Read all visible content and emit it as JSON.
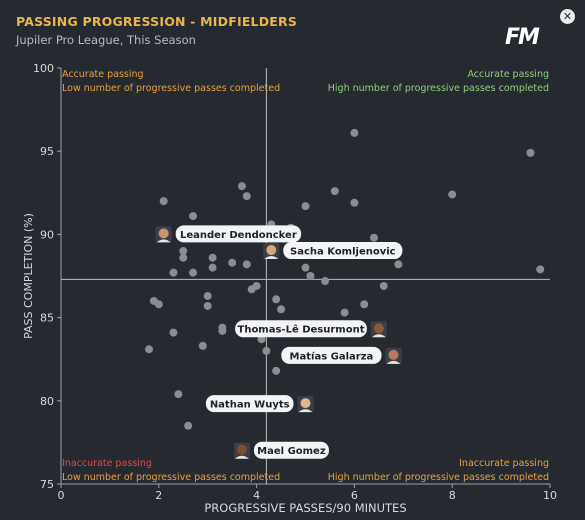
{
  "header": {
    "title": "PASSING PROGRESSION - MIDFIELDERS",
    "subtitle": "Jupiler Pro League, This Season",
    "logo_text": "FM",
    "close_label": "✕"
  },
  "colors": {
    "background": "#262a30",
    "accent": "#e8b64a",
    "quadrant_green": "#8fcf7e",
    "quadrant_orange": "#e8a23f",
    "quadrant_red": "#e0474c",
    "point": "#8a8d91",
    "axis": "#9ea2a8"
  },
  "chart_data": {
    "type": "scatter",
    "xlabel": "PROGRESSIVE PASSES/90 MINUTES",
    "ylabel": "PASS COMPLETION (%)",
    "xlim": [
      0,
      10
    ],
    "ylim": [
      75,
      100
    ],
    "x_ticks": [
      "0",
      "2",
      "4",
      "6",
      "8",
      "10"
    ],
    "y_ticks": [
      "75",
      "80",
      "85",
      "90",
      "95",
      "100"
    ],
    "reference_lines": {
      "x": 4.2,
      "y": 87.3
    },
    "quadrants": {
      "top_left": {
        "line1": "Accurate passing",
        "line2": "Low number of progressive passes completed",
        "color": "orange"
      },
      "top_right": {
        "line1": "Accurate passing",
        "line2": "High number of progressive passes completed",
        "color": "green"
      },
      "bottom_left": {
        "line1": "Inaccurate passing",
        "line2": "Low number of progressive passes completed",
        "color": "red_orange"
      },
      "bottom_right": {
        "line1": "Inaccurate passing",
        "line2": "High number of progressive passes completed",
        "color": "orange"
      }
    },
    "highlighted": [
      {
        "name": "Leander Dendoncker",
        "x": 2.1,
        "y": 90.0,
        "label_side": "right"
      },
      {
        "name": "Sacha Komljenovic",
        "x": 4.3,
        "y": 89.0,
        "label_side": "right"
      },
      {
        "name": "Thomas-Lê Desurmont",
        "x": 6.5,
        "y": 84.3,
        "label_side": "left"
      },
      {
        "name": "Matías Galarza",
        "x": 6.8,
        "y": 82.7,
        "label_side": "left"
      },
      {
        "name": "Nathan Wuyts",
        "x": 5.0,
        "y": 79.8,
        "label_side": "left"
      },
      {
        "name": "Mael Gomez",
        "x": 3.7,
        "y": 77.0,
        "label_side": "right"
      }
    ],
    "points": [
      {
        "x": 6.0,
        "y": 96.1
      },
      {
        "x": 9.6,
        "y": 94.9
      },
      {
        "x": 3.7,
        "y": 92.9
      },
      {
        "x": 5.6,
        "y": 92.6
      },
      {
        "x": 8.0,
        "y": 92.4
      },
      {
        "x": 3.8,
        "y": 92.3
      },
      {
        "x": 2.1,
        "y": 92.0
      },
      {
        "x": 6.0,
        "y": 91.9
      },
      {
        "x": 5.0,
        "y": 91.7
      },
      {
        "x": 2.7,
        "y": 91.1
      },
      {
        "x": 4.3,
        "y": 90.6
      },
      {
        "x": 4.7,
        "y": 90.4
      },
      {
        "x": 6.4,
        "y": 89.8
      },
      {
        "x": 2.5,
        "y": 89.0
      },
      {
        "x": 2.5,
        "y": 88.6
      },
      {
        "x": 3.1,
        "y": 88.6
      },
      {
        "x": 3.5,
        "y": 88.3
      },
      {
        "x": 3.8,
        "y": 88.2
      },
      {
        "x": 6.9,
        "y": 88.2
      },
      {
        "x": 3.1,
        "y": 88.0
      },
      {
        "x": 5.0,
        "y": 88.0
      },
      {
        "x": 2.3,
        "y": 87.7
      },
      {
        "x": 2.7,
        "y": 87.7
      },
      {
        "x": 5.1,
        "y": 87.5
      },
      {
        "x": 5.4,
        "y": 87.2
      },
      {
        "x": 6.6,
        "y": 86.9
      },
      {
        "x": 4.0,
        "y": 86.9
      },
      {
        "x": 9.8,
        "y": 87.9
      },
      {
        "x": 3.9,
        "y": 86.7
      },
      {
        "x": 3.0,
        "y": 86.3
      },
      {
        "x": 4.4,
        "y": 86.1
      },
      {
        "x": 1.9,
        "y": 86.0
      },
      {
        "x": 2.0,
        "y": 85.8
      },
      {
        "x": 3.0,
        "y": 85.7
      },
      {
        "x": 4.5,
        "y": 85.5
      },
      {
        "x": 6.2,
        "y": 85.8
      },
      {
        "x": 5.8,
        "y": 85.3
      },
      {
        "x": 5.3,
        "y": 84.4
      },
      {
        "x": 3.3,
        "y": 84.4
      },
      {
        "x": 3.3,
        "y": 84.2
      },
      {
        "x": 2.3,
        "y": 84.1
      },
      {
        "x": 2.9,
        "y": 83.3
      },
      {
        "x": 4.1,
        "y": 83.7
      },
      {
        "x": 1.8,
        "y": 83.1
      },
      {
        "x": 4.2,
        "y": 83.0
      },
      {
        "x": 4.4,
        "y": 81.8
      },
      {
        "x": 2.4,
        "y": 80.4
      },
      {
        "x": 2.6,
        "y": 78.5
      }
    ]
  }
}
